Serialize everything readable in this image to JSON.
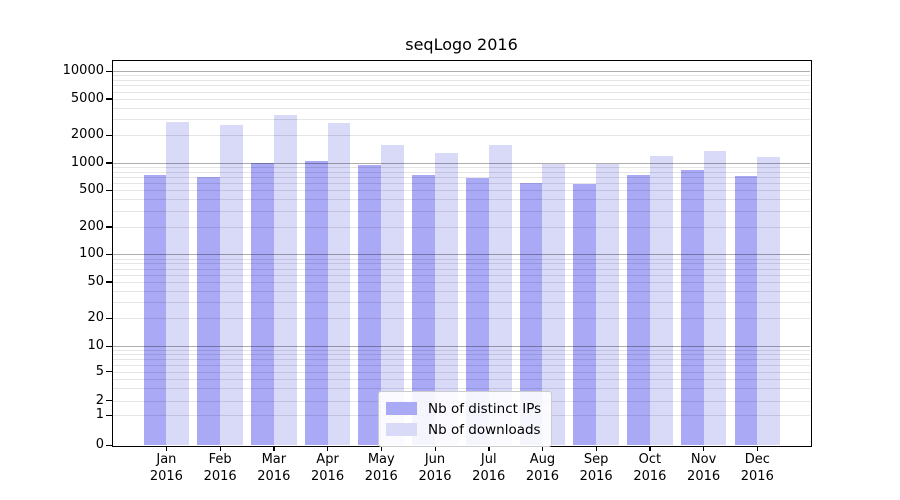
{
  "chart_data": {
    "type": "bar",
    "title": "seqLogo 2016",
    "year_label": "2016",
    "categories": [
      "Jan",
      "Feb",
      "Mar",
      "Apr",
      "May",
      "Jun",
      "Jul",
      "Aug",
      "Sep",
      "Oct",
      "Nov",
      "Dec"
    ],
    "series": [
      {
        "name": "Nb of distinct IPs",
        "color": "#a9a9f6",
        "values": [
          730,
          700,
          1000,
          1050,
          950,
          730,
          690,
          600,
          580,
          740,
          830,
          710
        ]
      },
      {
        "name": "Nb of downloads",
        "color": "#d9d9f8",
        "values": [
          2800,
          2600,
          3300,
          2740,
          1580,
          1280,
          1550,
          970,
          960,
          1200,
          1350,
          1170
        ]
      }
    ],
    "xlabel": "",
    "ylabel": "",
    "yscale": "symlog",
    "ylim": [
      0,
      10000
    ],
    "y_tick_labels": [
      "0",
      "1",
      "2",
      "5",
      "10",
      "20",
      "50",
      "100",
      "200",
      "500",
      "1000",
      "2000",
      "5000",
      "10000"
    ],
    "y_tick_values": [
      0,
      1,
      2,
      5,
      10,
      20,
      50,
      100,
      200,
      500,
      1000,
      2000,
      5000,
      10000
    ],
    "grid": "horizontal, minor log lines",
    "legend_position": "lower center inside plot"
  }
}
